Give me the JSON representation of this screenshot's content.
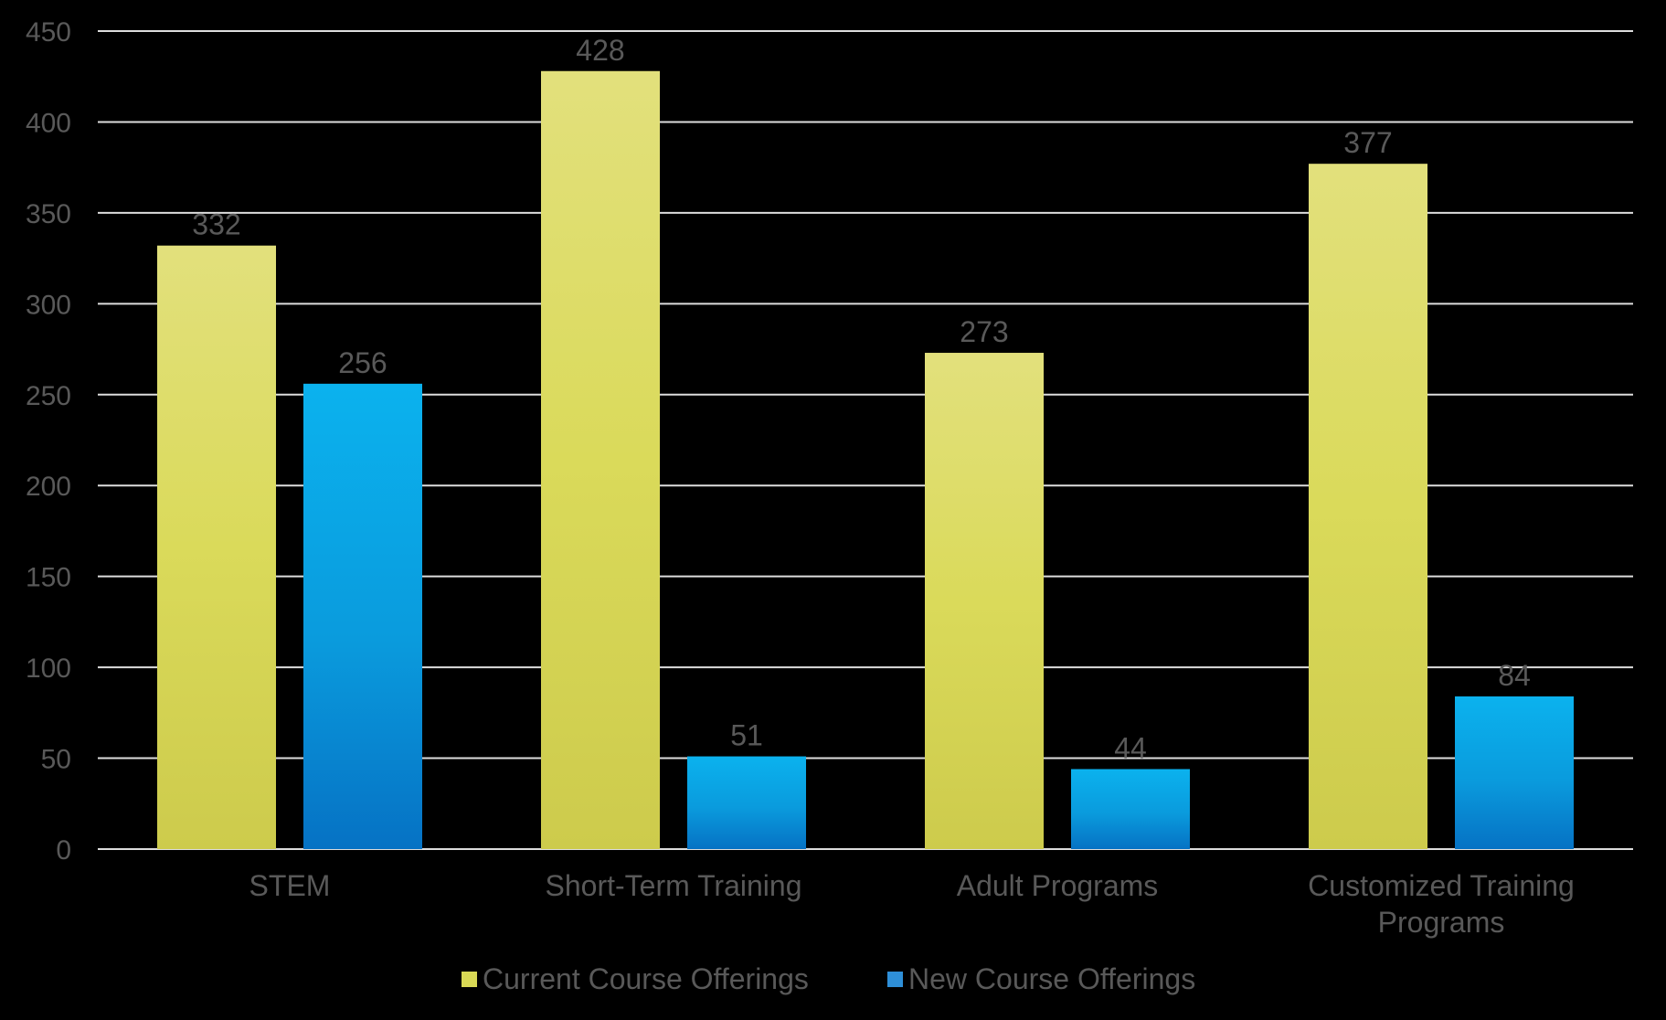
{
  "chart_data": {
    "type": "bar",
    "title": "",
    "xlabel": "",
    "ylabel": "",
    "ylim": [
      0,
      450
    ],
    "yticks": [
      0,
      50,
      100,
      150,
      200,
      250,
      300,
      350,
      400,
      450
    ],
    "grid": true,
    "legend_position": "bottom",
    "categories": [
      [
        "STEM"
      ],
      [
        "Short-Term Training"
      ],
      [
        "Adult Programs"
      ],
      [
        "Customized Training",
        "Programs"
      ]
    ],
    "series": [
      {
        "name": "Current Course Offerings",
        "values": [
          332,
          428,
          273,
          377
        ],
        "color": "#D9D955"
      },
      {
        "name": "New Course Offerings",
        "values": [
          256,
          51,
          44,
          84
        ],
        "color": "#0AA8E6"
      }
    ]
  }
}
